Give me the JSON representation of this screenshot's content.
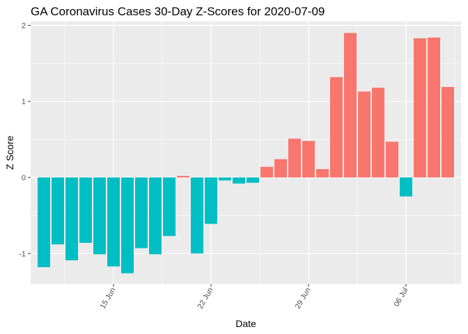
{
  "chart_data": {
    "type": "bar",
    "title": "GA Coronavirus Cases 30-Day Z-Scores for 2020-07-09",
    "xlabel": "Date",
    "ylabel": "Z Score",
    "ylim": [
      -1.4,
      2.05
    ],
    "yticks": [
      -1,
      0,
      1,
      2
    ],
    "ytick_labels": [
      "-1",
      "0",
      "1",
      "2"
    ],
    "xtick_labels": [
      "15 Jun",
      "22 Jun",
      "29 Jun",
      "06 Jul"
    ],
    "xtick_dates": [
      "2020-06-15",
      "2020-06-22",
      "2020-06-29",
      "2020-07-06"
    ],
    "grid": true,
    "legend": "none",
    "colors": {
      "positive": "#F8766D",
      "negative": "#00BFC4",
      "panel": "#EBEBEB",
      "grid": "#FFFFFF"
    },
    "x": [
      "2020-06-10",
      "2020-06-11",
      "2020-06-12",
      "2020-06-13",
      "2020-06-14",
      "2020-06-15",
      "2020-06-16",
      "2020-06-17",
      "2020-06-18",
      "2020-06-19",
      "2020-06-20",
      "2020-06-21",
      "2020-06-22",
      "2020-06-23",
      "2020-06-24",
      "2020-06-25",
      "2020-06-26",
      "2020-06-27",
      "2020-06-28",
      "2020-06-29",
      "2020-06-30",
      "2020-07-01",
      "2020-07-02",
      "2020-07-03",
      "2020-07-04",
      "2020-07-05",
      "2020-07-06",
      "2020-07-07",
      "2020-07-08",
      "2020-07-09"
    ],
    "values": [
      -1.18,
      -0.88,
      -1.09,
      -0.86,
      -1.01,
      -1.17,
      -1.26,
      -0.93,
      -1.01,
      -0.77,
      0.02,
      -1.0,
      -0.61,
      -0.04,
      -0.08,
      -0.07,
      0.14,
      0.24,
      0.51,
      0.48,
      0.11,
      1.32,
      1.9,
      1.13,
      1.18,
      0.47,
      -0.25,
      1.83,
      1.84,
      1.19
    ]
  }
}
